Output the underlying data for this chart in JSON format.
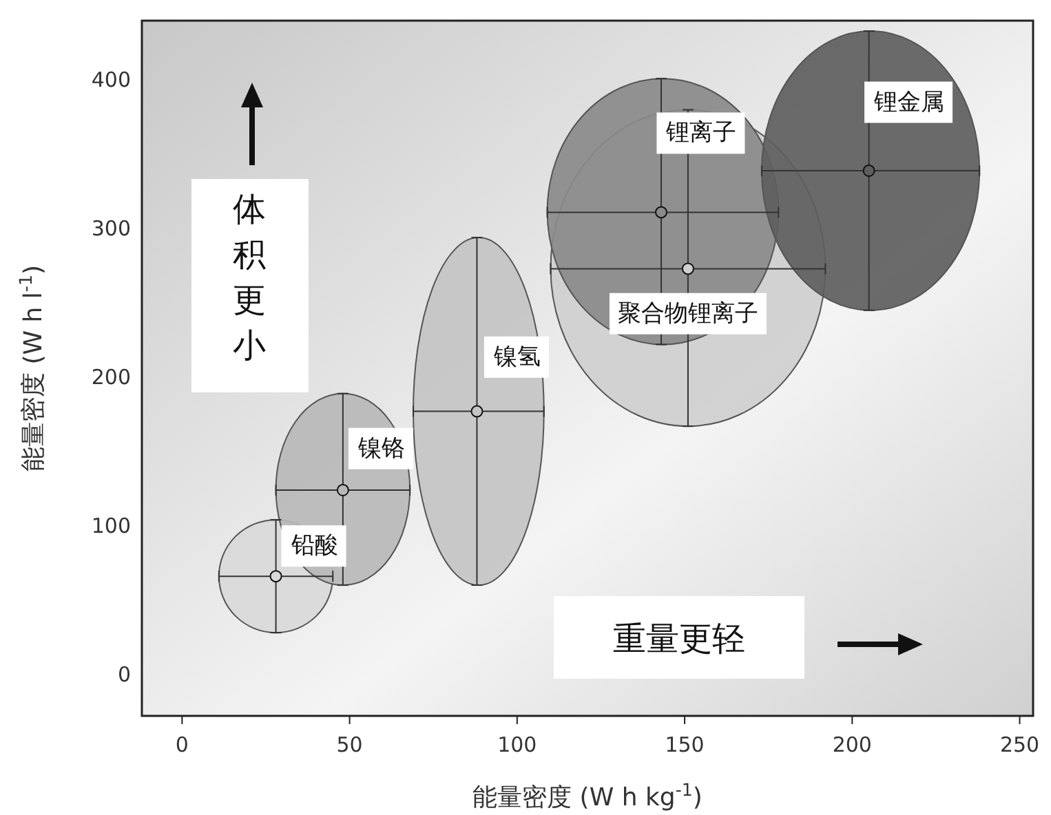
{
  "chart_data": {
    "type": "scatter",
    "xlabel": "能量密度 (W h kg$^{-1}$)",
    "ylabel": "能量密度 (W h l$^{-1}$)",
    "xlim": [
      -12,
      254
    ],
    "ylim": [
      -28,
      440
    ],
    "xticks": [
      0,
      50,
      100,
      150,
      200,
      250
    ],
    "yticks": [
      0,
      100,
      200,
      300,
      400
    ],
    "grid": false,
    "annotations": [
      "体积更小",
      "重量更轻"
    ],
    "series": [
      {
        "name": "铅酸",
        "color": "#d9d9d9",
        "x": [
          28
        ],
        "values": [
          66
        ],
        "xerrors": [
          [
            11,
            45
          ]
        ],
        "errors": [
          [
            28,
            104
          ]
        ]
      },
      {
        "name": "镍铬",
        "color": "#b8b8b8",
        "x": [
          48
        ],
        "values": [
          124
        ],
        "xerrors": [
          [
            28,
            68
          ]
        ],
        "errors": [
          [
            60,
            189
          ]
        ]
      },
      {
        "name": "镍氢",
        "color": "#c4c4c4",
        "x": [
          88
        ],
        "values": [
          177
        ],
        "xerrors": [
          [
            69,
            108
          ]
        ],
        "errors": [
          [
            60,
            294
          ]
        ]
      },
      {
        "name": "聚合物锂离子",
        "color": "#cfcfcf",
        "x": [
          151
        ],
        "values": [
          273
        ],
        "xerrors": [
          [
            110,
            192
          ]
        ],
        "errors": [
          [
            167,
            380
          ]
        ]
      },
      {
        "name": "锂离子",
        "color": "#8a8a8a",
        "x": [
          143
        ],
        "values": [
          311
        ],
        "xerrors": [
          [
            109,
            178
          ]
        ],
        "errors": [
          [
            222,
            401
          ]
        ]
      },
      {
        "name": "锂金属",
        "color": "#5e5e5e",
        "x": [
          205
        ],
        "values": [
          339
        ],
        "xerrors": [
          [
            173,
            238
          ]
        ],
        "errors": [
          [
            245,
            433
          ]
        ]
      }
    ]
  }
}
